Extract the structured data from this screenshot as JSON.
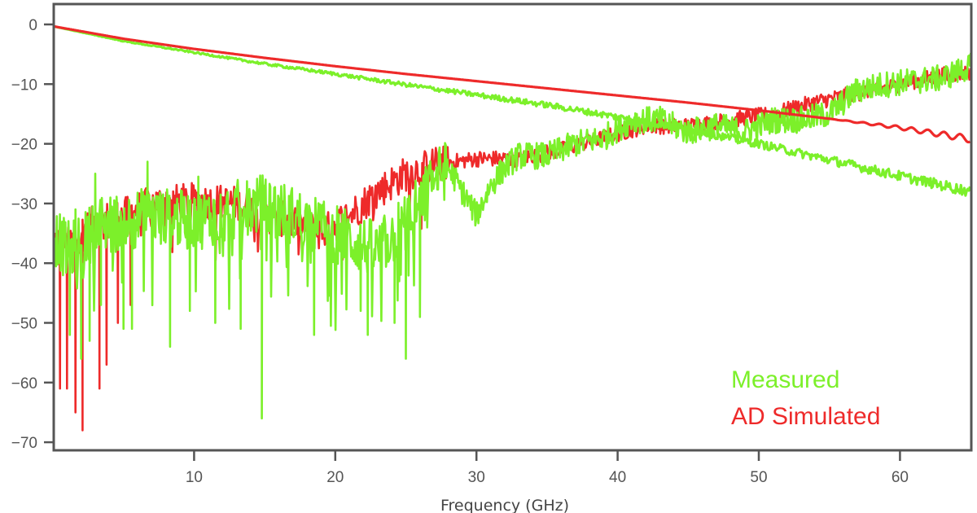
{
  "chart_data": {
    "type": "line",
    "title": "",
    "xlabel": "Frequency (GHz)",
    "ylabel": "",
    "xlim": [
      0,
      65
    ],
    "ylim": [
      -72,
      3.5
    ],
    "grid": false,
    "legend_position": "lower right (inside plot)",
    "x_ticks": [
      10,
      20,
      30,
      40,
      50,
      60
    ],
    "x_tick_labels": [
      "10",
      "20",
      "30",
      "40",
      "50",
      "60"
    ],
    "y_ticks": [
      0,
      -10,
      -20,
      -30,
      -40,
      -50,
      -60,
      -70
    ],
    "y_tick_labels": [
      "0",
      "−10",
      "−20",
      "−30",
      "−40",
      "−50",
      "−60",
      "−70"
    ],
    "legend": [
      {
        "label": "Measured",
        "color": "#7cf02a"
      },
      {
        "label": "AD Simulated",
        "color": "#ee2a2a"
      }
    ],
    "series": [
      {
        "name": "Measured (insertion loss)",
        "color": "#7cf02a",
        "noise": 0.15,
        "x": [
          0,
          5,
          10,
          15,
          20,
          25,
          30,
          35,
          40,
          45,
          50,
          55,
          60,
          65
        ],
        "values": [
          -0.3,
          -2.8,
          -4.7,
          -6.6,
          -8.3,
          -10.1,
          -11.8,
          -13.5,
          -15.5,
          -17.6,
          -20.0,
          -22.7,
          -25.4,
          -28.0
        ]
      },
      {
        "name": "AD Simulated (insertion loss)",
        "color": "#ee2a2a",
        "noise": 0.0,
        "ripple_start_ghz": 55,
        "x": [
          0,
          5,
          10,
          15,
          20,
          25,
          30,
          35,
          40,
          45,
          50,
          55,
          60,
          65
        ],
        "values": [
          -0.3,
          -2.4,
          -4.1,
          -5.6,
          -7.0,
          -8.3,
          -9.5,
          -10.7,
          -11.9,
          -13.1,
          -14.4,
          -15.8,
          -17.3,
          -19.2
        ]
      },
      {
        "name": "AD Simulated (return loss)",
        "color": "#ee2a2a",
        "noise": 3,
        "deep_nulls": [
          [
            0.5,
            -61
          ],
          [
            1.0,
            -61
          ],
          [
            1.6,
            -65
          ],
          [
            2.1,
            -68
          ],
          [
            3.3,
            -61
          ],
          [
            3.8,
            -57
          ],
          [
            4.6,
            -50
          ],
          [
            5.5,
            -47
          ]
        ],
        "x": [
          0,
          1,
          2,
          3,
          5,
          7,
          10,
          13,
          15,
          17,
          19,
          21,
          23,
          25,
          27,
          30,
          33,
          36,
          39,
          42,
          45,
          48,
          51,
          54,
          57,
          60,
          63,
          65
        ],
        "values": [
          -36,
          -37,
          -35,
          -33,
          -32,
          -30,
          -29.5,
          -30,
          -32,
          -33,
          -35,
          -32,
          -28,
          -25,
          -23.5,
          -22.5,
          -22.5,
          -21,
          -19,
          -17,
          -17,
          -16,
          -15,
          -13,
          -11.5,
          -10,
          -8.5,
          -8
        ]
      },
      {
        "name": "Measured (return loss)",
        "color": "#7cf02a",
        "noise": 5,
        "deep_nulls": [
          [
            1.2,
            -52
          ],
          [
            2.0,
            -56
          ],
          [
            2.6,
            -53
          ],
          [
            3.4,
            -47
          ],
          [
            5.0,
            -51
          ],
          [
            5.6,
            -51
          ],
          [
            8.3,
            -54
          ],
          [
            9.7,
            -48
          ],
          [
            11.5,
            -50
          ],
          [
            13.3,
            -51
          ],
          [
            14.8,
            -66
          ],
          [
            18.5,
            -52
          ],
          [
            21.8,
            -48
          ],
          [
            22.3,
            -52
          ],
          [
            25.0,
            -56
          ],
          [
            24.2,
            -50
          ],
          [
            26.0,
            -49
          ]
        ],
        "peaks": [
          [
            1.6,
            -31
          ],
          [
            2.3,
            -33
          ],
          [
            3.0,
            -25
          ],
          [
            6.7,
            -23
          ],
          [
            10.3,
            -25.5
          ],
          [
            15.0,
            -27
          ]
        ],
        "x": [
          0,
          1,
          2,
          3,
          5,
          7,
          10,
          13,
          15,
          17,
          19,
          21,
          23,
          25,
          26,
          27,
          28,
          29,
          30,
          31,
          32,
          33,
          35,
          37,
          39,
          41,
          43,
          45,
          47,
          49,
          51,
          53,
          55,
          56,
          57,
          59,
          61,
          63,
          65
        ],
        "values": [
          -35,
          -38,
          -37,
          -34,
          -33,
          -32,
          -33,
          -31,
          -30,
          -32,
          -34,
          -36,
          -38,
          -33,
          -30,
          -26,
          -24,
          -28,
          -32,
          -27,
          -24,
          -22,
          -22,
          -20,
          -19,
          -16,
          -16,
          -18,
          -17,
          -18,
          -16,
          -16,
          -15,
          -13,
          -11,
          -10,
          -9.5,
          -9,
          -7
        ]
      }
    ]
  }
}
